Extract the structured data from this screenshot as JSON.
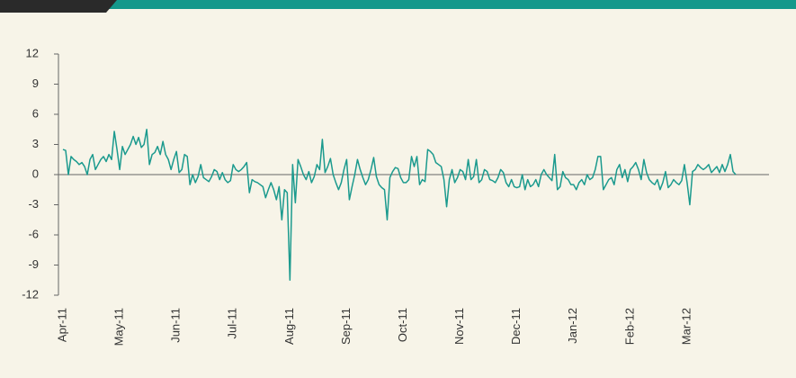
{
  "chart_data": {
    "type": "line",
    "categories": [
      "Apr-11",
      null,
      null,
      null,
      null,
      null,
      null,
      null,
      null,
      null,
      null,
      null,
      null,
      null,
      null,
      null,
      null,
      null,
      null,
      null,
      null,
      "May-11",
      null,
      null,
      null,
      null,
      null,
      null,
      null,
      null,
      null,
      null,
      null,
      null,
      null,
      null,
      null,
      null,
      null,
      null,
      null,
      null,
      "Jun-11",
      null,
      null,
      null,
      null,
      null,
      null,
      null,
      null,
      null,
      null,
      null,
      null,
      null,
      null,
      null,
      null,
      null,
      null,
      null,
      null,
      "Jul-11",
      null,
      null,
      null,
      null,
      null,
      null,
      null,
      null,
      null,
      null,
      null,
      null,
      null,
      null,
      null,
      null,
      null,
      null,
      null,
      null,
      "Aug-11",
      null,
      null,
      null,
      null,
      null,
      null,
      null,
      null,
      null,
      null,
      null,
      null,
      null,
      null,
      null,
      null,
      null,
      null,
      null,
      null,
      "Sep-11",
      null,
      null,
      null,
      null,
      null,
      null,
      null,
      null,
      null,
      null,
      null,
      null,
      null,
      null,
      null,
      null,
      null,
      null,
      null,
      null,
      "Oct-11",
      null,
      null,
      null,
      null,
      null,
      null,
      null,
      null,
      null,
      null,
      null,
      null,
      null,
      null,
      null,
      null,
      null,
      null,
      null,
      null,
      "Nov-11",
      null,
      null,
      null,
      null,
      null,
      null,
      null,
      null,
      null,
      null,
      null,
      null,
      null,
      null,
      null,
      null,
      null,
      null,
      null,
      null,
      "Dec-11",
      null,
      null,
      null,
      null,
      null,
      null,
      null,
      null,
      null,
      null,
      null,
      null,
      null,
      null,
      null,
      null,
      null,
      null,
      null,
      null,
      "Jan-12",
      null,
      null,
      null,
      null,
      null,
      null,
      null,
      null,
      null,
      null,
      null,
      null,
      null,
      null,
      null,
      null,
      null,
      null,
      null,
      null,
      "Feb-12",
      null,
      null,
      null,
      null,
      null,
      null,
      null,
      null,
      null,
      null,
      null,
      null,
      null,
      null,
      null,
      null,
      null,
      null,
      null,
      null,
      "Mar-12",
      null,
      null,
      null,
      null,
      null,
      null,
      null,
      null,
      null,
      null,
      null,
      null,
      null,
      null,
      null,
      null,
      null,
      null
    ],
    "series": [
      {
        "color": "#1b9a8e",
        "values": [
          2.5,
          2.4,
          0,
          1.8,
          1.5,
          1.3,
          1,
          1.2,
          0.8,
          0,
          1.5,
          2,
          0.5,
          1,
          1.5,
          1.8,
          1.3,
          2,
          1.5,
          4.3,
          2.5,
          0.5,
          2.8,
          2,
          2.5,
          3,
          3.8,
          3,
          3.7,
          2.7,
          3,
          4.5,
          1,
          2,
          2.2,
          2.8,
          2,
          3.3,
          2,
          1.5,
          0.5,
          1.5,
          2.3,
          0.2,
          0.5,
          2,
          1.8,
          -1,
          0,
          -0.8,
          -0.2,
          1,
          -0.3,
          -0.5,
          -0.7,
          -0.2,
          0.5,
          0.3,
          -0.5,
          0.2,
          -0.5,
          -0.8,
          -0.6,
          1,
          0.5,
          0.3,
          0.5,
          0.8,
          1.2,
          -1.8,
          -0.5,
          -0.7,
          -0.8,
          -1,
          -1.2,
          -2.3,
          -1.5,
          -0.8,
          -1.5,
          -2.5,
          -1.2,
          -4.5,
          -1.5,
          -1.8,
          -10.5,
          1,
          -2.8,
          1.5,
          0.8,
          0,
          -0.5,
          0.3,
          -0.8,
          -0.2,
          1,
          0.5,
          3.5,
          0.2,
          0.8,
          1.6,
          0,
          -0.8,
          -1.5,
          -0.8,
          0.5,
          1.5,
          -2.5,
          -1.2,
          0,
          1.5,
          0.5,
          -0.3,
          -1,
          -0.5,
          0.5,
          1.7,
          -0.2,
          -1,
          -1.3,
          -1.5,
          -4.5,
          -0.3,
          0.3,
          0.7,
          0.6,
          -0.3,
          -0.8,
          -0.8,
          -0.5,
          1.8,
          0.8,
          1.8,
          -1,
          -0.5,
          -0.7,
          2.5,
          2.3,
          2,
          1.2,
          1,
          0.8,
          -0.5,
          -3.2,
          -0.5,
          0.5,
          -0.8,
          -0.3,
          0.5,
          0.3,
          -0.5,
          1.5,
          -0.5,
          -0.2,
          1.5,
          -0.8,
          -0.5,
          0.5,
          0.3,
          -0.5,
          -0.6,
          -0.8,
          -0.3,
          0.5,
          0.2,
          -0.8,
          -1.2,
          -0.5,
          -1.2,
          -1.3,
          -1.2,
          0,
          -1.5,
          -0.5,
          -1.2,
          -1,
          -0.5,
          -1.2,
          0,
          0.5,
          0,
          -0.3,
          -0.6,
          2,
          -1.5,
          -1.2,
          0.3,
          -0.3,
          -0.5,
          -1,
          -1,
          -1.5,
          -0.8,
          -0.5,
          -1,
          0,
          -0.5,
          -0.3,
          0.5,
          1.8,
          1.8,
          -1.5,
          -1,
          -0.5,
          -0.3,
          -1,
          0.5,
          1,
          -0.3,
          0.5,
          -0.7,
          0.5,
          0.8,
          1.2,
          0.5,
          -0.5,
          1.5,
          0.2,
          -0.5,
          -0.8,
          -1,
          -0.5,
          -1.5,
          -0.8,
          0.3,
          -1.3,
          -1,
          -0.5,
          -0.8,
          -1,
          -0.6,
          1,
          -0.8,
          -3,
          0.3,
          0.5,
          1,
          0.7,
          0.5,
          0.7,
          1,
          0.2,
          0.5,
          0.8,
          0.2,
          1,
          0.3,
          1,
          2,
          0.3,
          0
        ]
      }
    ],
    "ylim": [
      -12,
      12
    ],
    "yticks": [
      12,
      9,
      6,
      3,
      0,
      -3,
      -6,
      -9,
      -12
    ],
    "grid": false
  }
}
